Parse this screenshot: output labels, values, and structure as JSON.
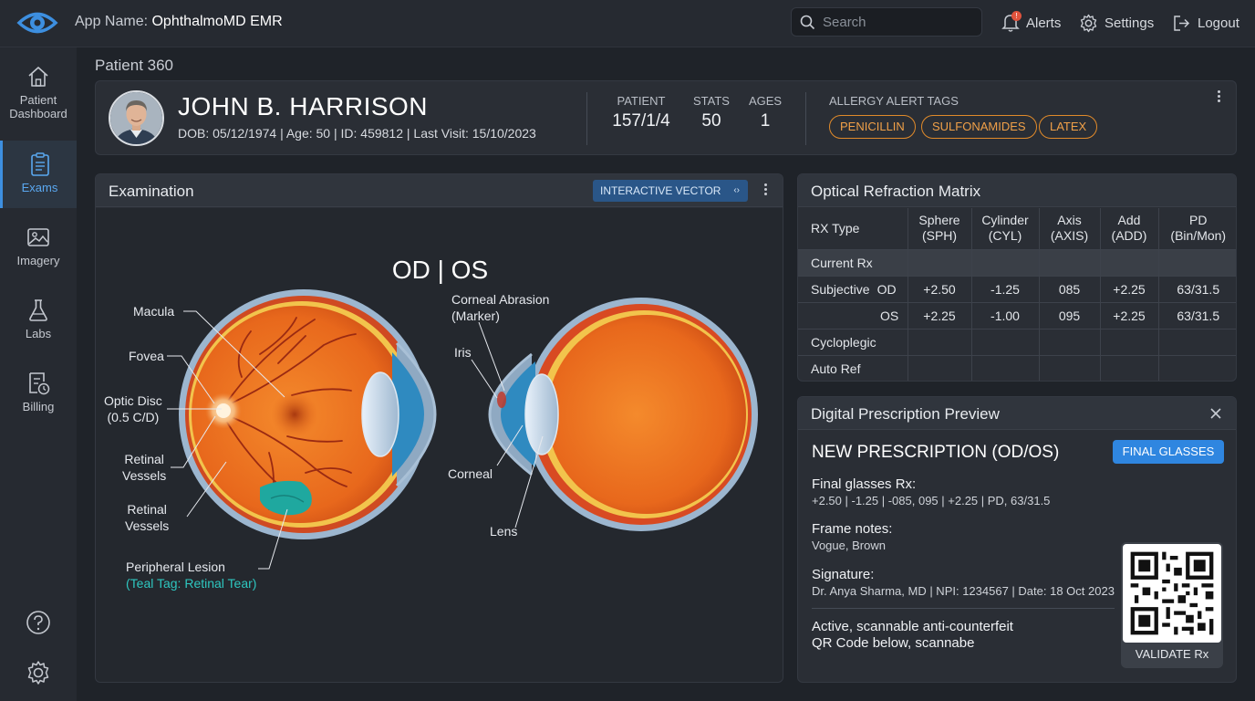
{
  "app": {
    "prefix": "App Name: ",
    "name": "OphthalmoMD EMR"
  },
  "search": {
    "placeholder": "Search"
  },
  "top_actions": {
    "alerts": "Alerts",
    "alerts_badge": "!",
    "settings": "Settings",
    "logout": "Logout"
  },
  "sidebar": {
    "items": [
      {
        "label": "Patient Dashboard",
        "line1": "Patient",
        "line2": "Dashboard",
        "icon": "home-icon"
      },
      {
        "label": "Exams",
        "icon": "clipboard-icon",
        "active": true
      },
      {
        "label": "Imagery",
        "icon": "image-icon"
      },
      {
        "label": "Labs",
        "icon": "flask-icon"
      },
      {
        "label": "Billing",
        "icon": "billing-icon"
      }
    ],
    "bottom": [
      "help-icon",
      "gear-icon"
    ]
  },
  "breadcrumb": "Patient 360",
  "patient": {
    "name": "JOHN B. HARRISON",
    "meta": "DOB: 05/12/1974 | Age: 50 | ID: 459812 | Last Visit: 15/10/2023",
    "stats": [
      {
        "label": "PATIENT",
        "value": "157/1/4"
      },
      {
        "label": "STATS",
        "value": "50"
      },
      {
        "label": "AGES",
        "value": "1"
      }
    ],
    "allergy_title": "ALLERGY ALERT TAGS",
    "allergies": [
      "PENICILLIN",
      "SULFONAMIDES",
      "LATEX"
    ]
  },
  "exam": {
    "title": "Examination",
    "button": "INTERACTIVE VECTOR",
    "button_icon": "‹›",
    "heading": "OD | OS",
    "labels": {
      "macula": "Macula",
      "fovea": "Fovea",
      "optic_disc_1": "Optic Disc",
      "optic_disc_2": "(0.5 C/D)",
      "retinal_a_1": "Retinal",
      "retinal_a_2": "Vessels",
      "retinal_b_1": "Retinal",
      "retinal_b_2": "Vessels",
      "lesion": "Peripheral Lesion",
      "lesion_tag": "(Teal Tag: Retinal Tear)",
      "abrasion_1": "Corneal Abrasion",
      "abrasion_2": "(Marker)",
      "iris": "Iris",
      "corneal": "Corneal",
      "lens": "Lens"
    }
  },
  "refraction": {
    "title": "Optical Refraction Matrix",
    "headers": [
      {
        "l1": "RX Type",
        "l2": ""
      },
      {
        "l1": "Sphere",
        "l2": "(SPH)"
      },
      {
        "l1": "Cylinder",
        "l2": "(CYL)"
      },
      {
        "l1": "Axis",
        "l2": "(AXIS)"
      },
      {
        "l1": "Add",
        "l2": "(ADD)"
      },
      {
        "l1": "PD",
        "l2": "(Bin/Mon)"
      }
    ],
    "rows": [
      {
        "type": "Current Rx",
        "eye": "",
        "cells": [
          "",
          "",
          "",
          "",
          ""
        ]
      },
      {
        "type": "Subjective",
        "eye": "OD",
        "cells": [
          "+2.50",
          "-1.25",
          "085",
          "+2.25",
          "63/31.5"
        ]
      },
      {
        "type": "",
        "eye": "OS",
        "cells": [
          "+2.25",
          "-1.00",
          "095",
          "+2.25",
          "63/31.5"
        ]
      },
      {
        "type": "Cycloplegic",
        "eye": "",
        "cells": [
          "",
          "",
          "",
          "",
          ""
        ]
      },
      {
        "type": "Auto Ref",
        "eye": "",
        "cells": [
          "",
          "",
          "",
          "",
          ""
        ]
      }
    ]
  },
  "prescription": {
    "title": "Digital Prescription Preview",
    "heading": "NEW PRESCRIPTION (OD/OS)",
    "button": "FINAL GLASSES",
    "final_label": "Final glasses Rx:",
    "final_value": "+2.50 | -1.25 | -085, 095 | +2.25 | PD, 63/31.5",
    "frame_label": "Frame notes:",
    "frame_value": "Vogue, Brown",
    "sig_label": "Signature:",
    "sig_value": "Dr. Anya Sharma, MD | NPI: 1234567 | Date: 18 Oct 2023",
    "qr_note_1": "Active, scannable anti-counterfeit",
    "qr_note_2": "QR Code below, scannabe",
    "validate": "VALIDATE Rx"
  },
  "colors": {
    "accent": "#2f86e0",
    "allergy": "#e08a2a",
    "teal": "#2ec7c0",
    "alert": "#e0533d"
  }
}
